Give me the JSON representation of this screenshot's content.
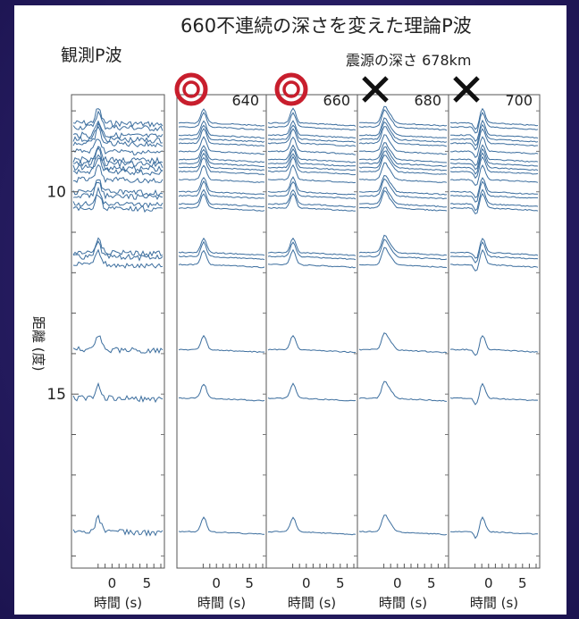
{
  "chart_data": {
    "type": "line",
    "title": "660不連続の深さを変えた理論P波",
    "annotation": "震源の深さ 678km",
    "observed_label": "観測P波",
    "ylabel": "距離 (度)",
    "yticks": [
      {
        "value": 10,
        "label": "10"
      },
      {
        "value": 15,
        "label": "15"
      }
    ],
    "ylim": [
      7.6,
      19.3
    ],
    "xlim": [
      -3,
      7
    ],
    "xticks": [
      {
        "value": 0,
        "label": "0"
      },
      {
        "value": 5,
        "label": "5"
      }
    ],
    "xlabel": "時間 (s)",
    "columns": [
      {
        "key": "observed",
        "label": "",
        "marker": ""
      },
      {
        "key": "d640",
        "label": "640",
        "marker": "circle"
      },
      {
        "key": "d660",
        "label": "660",
        "marker": "circle"
      },
      {
        "key": "d680",
        "label": "680",
        "marker": "cross"
      },
      {
        "key": "d700",
        "label": "700",
        "marker": "cross"
      }
    ],
    "trace_distances": [
      8.3,
      8.4,
      8.6,
      8.7,
      8.8,
      9.0,
      9.2,
      9.3,
      9.4,
      9.5,
      9.7,
      10.0,
      10.1,
      10.3,
      10.4,
      11.5,
      11.6,
      11.8,
      13.9,
      15.1,
      18.4
    ],
    "colors": {
      "trace": "#3c6e9e",
      "circle_marker": "#c81e2d",
      "cross_marker": "#111111"
    }
  }
}
